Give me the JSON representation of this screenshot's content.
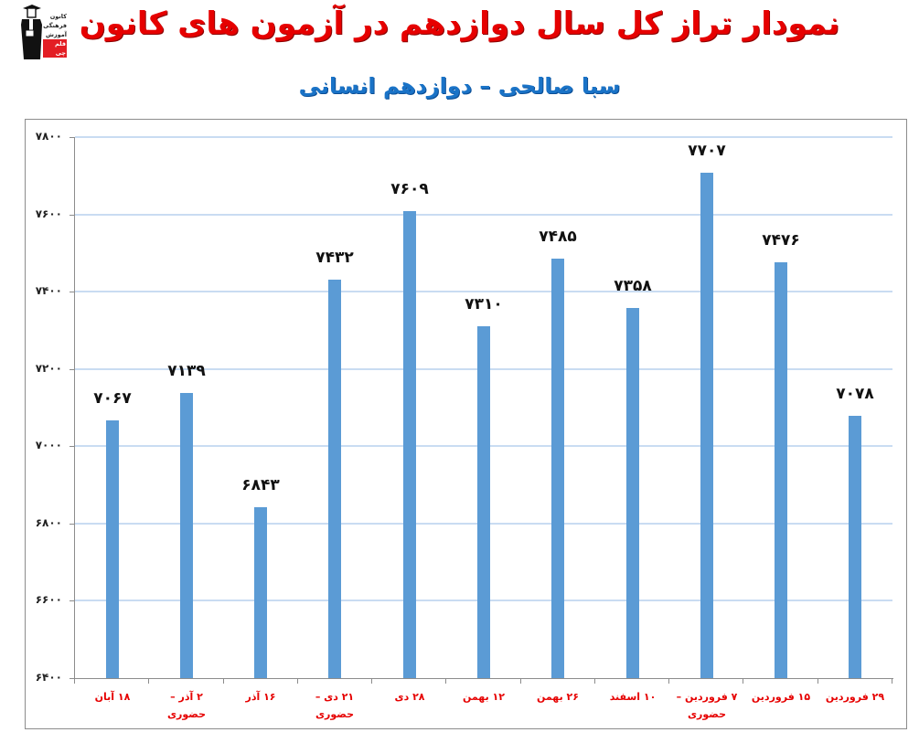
{
  "header": {
    "logo": {
      "lines": [
        "کانون",
        "فرهنگی",
        "آموزش"
      ],
      "badge": "قلم چی",
      "badge_color": "#e31e24"
    },
    "title": "نمودار تراز کل سال دوازدهم در آزمون های کانون",
    "subtitle": "سبا صالحی – دوازدهم انسانی"
  },
  "y_tick_labels": [
    "۷۸۰۰",
    "۷۶۰۰",
    "۷۴۰۰",
    "۷۲۰۰",
    "۷۰۰۰",
    "۶۸۰۰",
    "۶۶۰۰",
    "۶۴۰۰"
  ],
  "data_labels": [
    "۷۰۶۷",
    "۷۱۳۹",
    "۶۸۴۳",
    "۷۴۳۲",
    "۷۶۰۹",
    "۷۳۱۰",
    "۷۴۸۵",
    "۷۳۵۸",
    "۷۷۰۷",
    "۷۴۷۶",
    "۷۰۷۸"
  ],
  "chart_data": {
    "type": "bar",
    "title": "نمودار تراز کل سال دوازدهم در آزمون های کانون",
    "subtitle": "سبا صالحی – دوازدهم انسانی",
    "xlabel": "",
    "ylabel": "",
    "categories": [
      "۱۸ آبان",
      "۲ آذر – حضوری",
      "۱۶ آذر",
      "۲۱ دی – حضوری",
      "۲۸ دی",
      "۱۲ بهمن",
      "۲۶ بهمن",
      "۱۰ اسفند",
      "۷ فروردین – حضوری",
      "۱۵ فروردین",
      "۲۹ فروردین"
    ],
    "values": [
      7067,
      7139,
      6843,
      7432,
      7609,
      7310,
      7485,
      7358,
      7707,
      7476,
      7078
    ],
    "ylim": [
      6400,
      7800
    ],
    "yticks": [
      6400,
      6600,
      6800,
      7000,
      7200,
      7400,
      7600,
      7800
    ],
    "grid": true,
    "legend": "none",
    "data_labels": true,
    "colors": {
      "bar": "#5b9bd5",
      "gridline": "#c9dcf2",
      "category_label": "#e60000",
      "title": "#e60000",
      "subtitle": "#1a73c7"
    }
  }
}
